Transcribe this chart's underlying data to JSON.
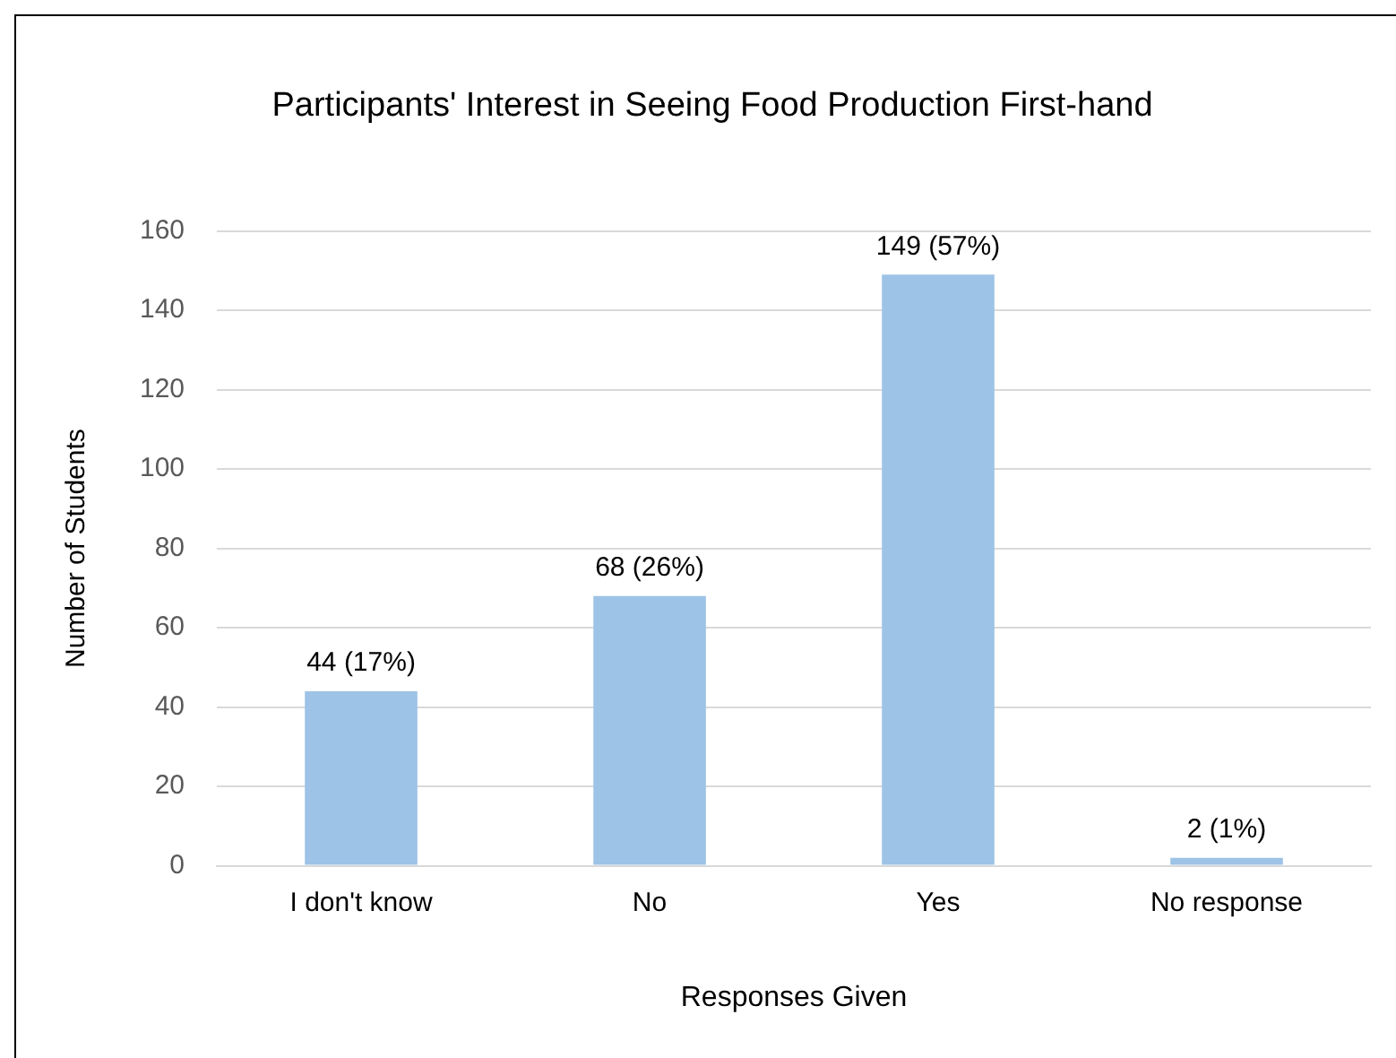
{
  "chart_data": {
    "type": "bar",
    "title": "Participants' Interest in Seeing Food Production First-hand",
    "xlabel": "Responses Given",
    "ylabel": "Number of Students",
    "categories": [
      "I don't know",
      "No",
      "Yes",
      "No response"
    ],
    "values": [
      44,
      68,
      149,
      2
    ],
    "value_labels": [
      "44 (17%)",
      "68 (26%)",
      "149 (57%)",
      "2 (1%)"
    ],
    "color": "#9dc3e6",
    "ylim": [
      0,
      160
    ],
    "yticks": [
      0,
      20,
      40,
      60,
      80,
      100,
      120,
      140,
      160
    ],
    "grid": "y",
    "legend": false
  }
}
